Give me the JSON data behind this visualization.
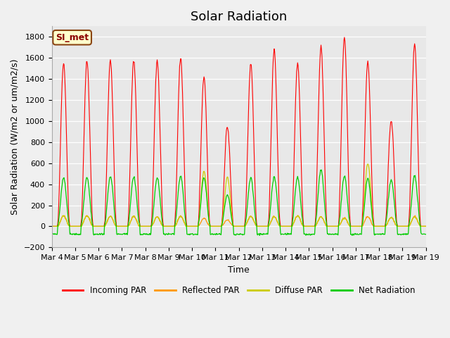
{
  "title": "Solar Radiation",
  "ylabel": "Solar Radiation (W/m2 or um/m2/s)",
  "xlabel": "Time",
  "ylim": [
    -200,
    1900
  ],
  "yticks": [
    -200,
    0,
    200,
    400,
    600,
    800,
    1000,
    1200,
    1400,
    1600,
    1800
  ],
  "xtick_labels": [
    "Mar 4",
    "Mar 5",
    "Mar 6",
    "Mar 7",
    "Mar 8",
    "Mar 9",
    "Mar 10",
    "Mar 11",
    "Mar 12",
    "Mar 13",
    "Mar 14",
    "Mar 15",
    "Mar 16",
    "Mar 17",
    "Mar 18",
    "Mar 19",
    "Mar 19"
  ],
  "n_days": 16,
  "colors": {
    "incoming": "#ff0000",
    "reflected": "#ff9900",
    "diffuse": "#cccc00",
    "net": "#00cc00"
  },
  "legend_label_box": "SI_met",
  "plot_bg": "#e8e8e8",
  "fig_bg": "#f0f0f0",
  "day_peaks_incoming": [
    1550,
    1560,
    1570,
    1575,
    1570,
    1600,
    1420,
    950,
    1540,
    1680,
    1550,
    1700,
    1790,
    1560,
    1010,
    1730
  ],
  "day_peaks_net": [
    460,
    465,
    470,
    470,
    460,
    480,
    460,
    300,
    460,
    470,
    460,
    535,
    475,
    450,
    440,
    480
  ],
  "day_peaks_reflected": [
    100,
    100,
    95,
    95,
    90,
    95,
    75,
    60,
    95,
    90,
    100,
    90,
    80,
    90,
    85,
    95
  ],
  "day_peaks_diffuse": [
    100,
    100,
    95,
    95,
    90,
    95,
    525,
    465,
    95,
    90,
    100,
    90,
    80,
    600,
    85,
    90
  ],
  "net_night": -75,
  "title_fontsize": 13,
  "label_fontsize": 9,
  "tick_fontsize": 8
}
